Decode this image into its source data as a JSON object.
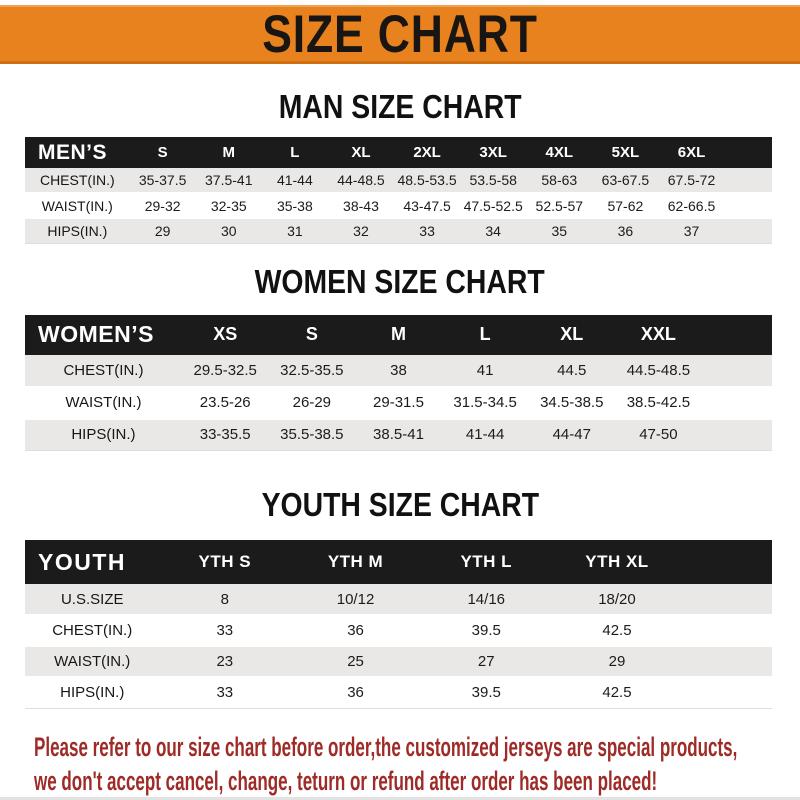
{
  "banner": {
    "title": "SIZE CHART",
    "bg_color": "#e8821e",
    "text_color": "#181512"
  },
  "sections": [
    {
      "heading": "MAN SIZE CHART",
      "table": {
        "header_label": "MEN’S",
        "columns": [
          "S",
          "M",
          "L",
          "XL",
          "2XL",
          "3XL",
          "4XL",
          "5XL",
          "6XL"
        ],
        "rows": [
          {
            "label": "CHEST(IN.)",
            "values": [
              "35-37.5",
              "37.5-41",
              "41-44",
              "44-48.5",
              "48.5-53.5",
              "53.5-58",
              "58-63",
              "63-67.5",
              "67.5-72"
            ]
          },
          {
            "label": "WAIST(IN.)",
            "values": [
              "29-32",
              "32-35",
              "35-38",
              "38-43",
              "43-47.5",
              "47.5-52.5",
              "52.5-57",
              "57-62",
              "62-66.5"
            ]
          },
          {
            "label": "HIPS(IN.)",
            "values": [
              "29",
              "30",
              "31",
              "32",
              "33",
              "34",
              "35",
              "36",
              "37"
            ]
          }
        ]
      }
    },
    {
      "heading": "WOMEN SIZE CHART",
      "table": {
        "header_label": "WOMEN’S",
        "columns": [
          "XS",
          "S",
          "M",
          "L",
          "XL",
          "XXL"
        ],
        "rows": [
          {
            "label": "CHEST(IN.)",
            "values": [
              "29.5-32.5",
              "32.5-35.5",
              "38",
              "41",
              "44.5",
              "44.5-48.5"
            ]
          },
          {
            "label": "WAIST(IN.)",
            "values": [
              "23.5-26",
              "26-29",
              "29-31.5",
              "31.5-34.5",
              "34.5-38.5",
              "38.5-42.5"
            ]
          },
          {
            "label": "HIPS(IN.)",
            "values": [
              "33-35.5",
              "35.5-38.5",
              "38.5-41",
              "41-44",
              "44-47",
              "47-50"
            ]
          }
        ]
      }
    },
    {
      "heading": "YOUTH SIZE CHART",
      "table": {
        "header_label": "YOUTH",
        "columns": [
          "YTH S",
          "YTH M",
          "YTH L",
          "YTH XL"
        ],
        "rows": [
          {
            "label": "U.S.SIZE",
            "values": [
              "8",
              "10/12",
              "14/16",
              "18/20"
            ]
          },
          {
            "label": "CHEST(IN.)",
            "values": [
              "33",
              "36",
              "39.5",
              "42.5"
            ]
          },
          {
            "label": "WAIST(IN.)",
            "values": [
              "23",
              "25",
              "27",
              "29"
            ]
          },
          {
            "label": "HIPS(IN.)",
            "values": [
              "33",
              "36",
              "39.5",
              "42.5"
            ]
          }
        ]
      }
    }
  ],
  "disclaimer": {
    "line1": "Please refer to our size chart before order,the customized jerseys are special products,",
    "line2": "we don't accept cancel, change, teturn or refund after order has been placed!",
    "color": "#9e2b27"
  }
}
